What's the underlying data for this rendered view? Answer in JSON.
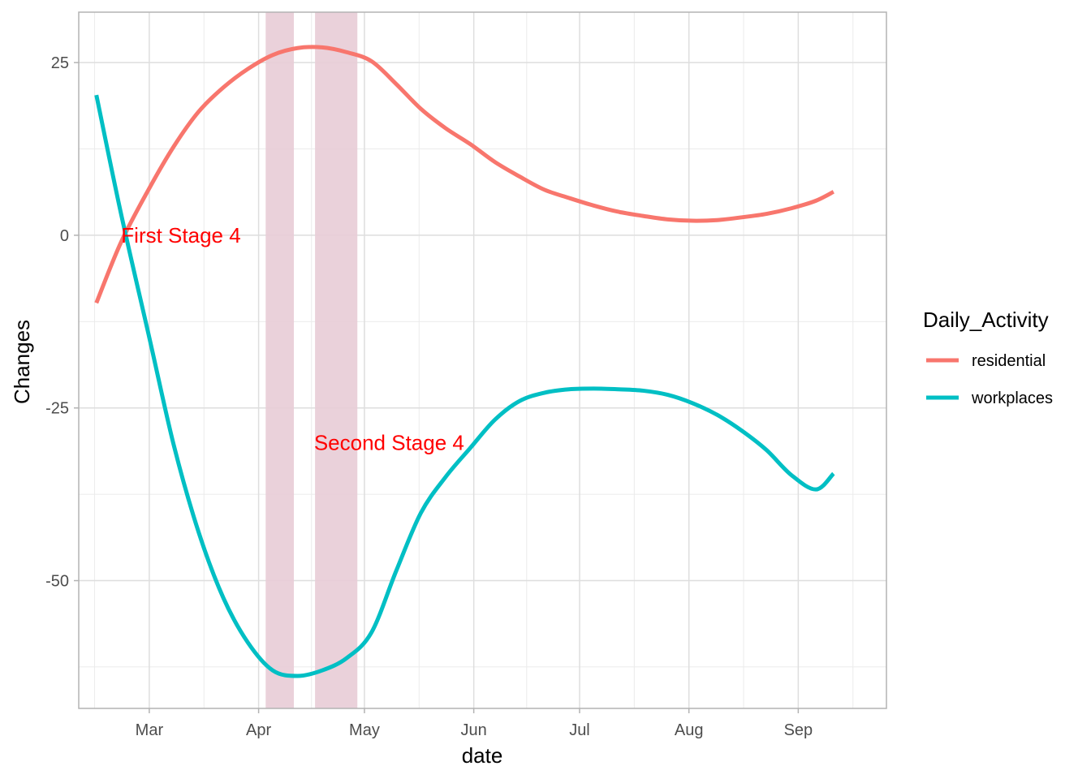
{
  "chart_data": {
    "type": "line",
    "xlabel": "date",
    "ylabel": "Changes",
    "x_ticks": [
      "Mar",
      "Apr",
      "May",
      "Jun",
      "Jul",
      "Aug",
      "Sep"
    ],
    "y_ticks": [
      25,
      0,
      -25,
      -50
    ],
    "xlim": [
      "2020-02-10",
      "2020-09-26"
    ],
    "ylim": [
      -68.5,
      32.3
    ],
    "grid": true,
    "legend": {
      "title": "Daily_Activity",
      "position": "right"
    },
    "shaded_periods": [
      {
        "start": "2020-04-03",
        "end": "2020-04-11",
        "color": "#e8ccd6"
      },
      {
        "start": "2020-04-17",
        "end": "2020-04-29",
        "color": "#e8ccd6"
      }
    ],
    "annotations": [
      {
        "text": "First Stage 4",
        "x": "2020-03-10",
        "y": 0,
        "color": "#ff0000"
      },
      {
        "text": "Second Stage 4",
        "x": "2020-05-08",
        "y": -30,
        "color": "#ff0000"
      }
    ],
    "series": [
      {
        "name": "residential",
        "color": "#f8766d",
        "x": [
          "2020-02-15",
          "2020-02-22",
          "2020-03-01",
          "2020-03-08",
          "2020-03-15",
          "2020-03-22",
          "2020-03-29",
          "2020-04-05",
          "2020-04-12",
          "2020-04-19",
          "2020-04-26",
          "2020-05-03",
          "2020-05-10",
          "2020-05-17",
          "2020-05-24",
          "2020-05-31",
          "2020-06-07",
          "2020-06-14",
          "2020-06-21",
          "2020-06-28",
          "2020-07-05",
          "2020-07-12",
          "2020-07-19",
          "2020-07-26",
          "2020-08-02",
          "2020-08-09",
          "2020-08-16",
          "2020-08-23",
          "2020-08-30",
          "2020-09-06",
          "2020-09-11"
        ],
        "y": [
          -9.8,
          -1.0,
          6.8,
          12.9,
          17.9,
          21.4,
          24.1,
          26.1,
          27.1,
          27.2,
          26.5,
          25.2,
          21.9,
          18.3,
          15.5,
          13.2,
          10.6,
          8.5,
          6.6,
          5.4,
          4.3,
          3.4,
          2.8,
          2.3,
          2.1,
          2.2,
          2.6,
          3.1,
          3.9,
          5.0,
          6.3
        ]
      },
      {
        "name": "workplaces",
        "color": "#00bfc4",
        "x": [
          "2020-02-15",
          "2020-02-22",
          "2020-03-01",
          "2020-03-08",
          "2020-03-15",
          "2020-03-22",
          "2020-03-29",
          "2020-04-05",
          "2020-04-12",
          "2020-04-19",
          "2020-04-26",
          "2020-05-03",
          "2020-05-10",
          "2020-05-17",
          "2020-05-24",
          "2020-05-31",
          "2020-06-07",
          "2020-06-14",
          "2020-06-21",
          "2020-06-28",
          "2020-07-05",
          "2020-07-12",
          "2020-07-19",
          "2020-07-26",
          "2020-08-02",
          "2020-08-09",
          "2020-08-16",
          "2020-08-23",
          "2020-08-30",
          "2020-09-06",
          "2020-09-11"
        ],
        "y": [
          20.3,
          3.1,
          -14.8,
          -30.5,
          -43.0,
          -52.5,
          -59.0,
          -63.0,
          -63.8,
          -63.0,
          -61.2,
          -57.5,
          -48.6,
          -40.2,
          -35.0,
          -30.8,
          -26.7,
          -24.0,
          -22.8,
          -22.3,
          -22.2,
          -22.3,
          -22.5,
          -23.1,
          -24.3,
          -26.0,
          -28.3,
          -31.1,
          -34.7,
          -36.8,
          -34.5
        ]
      }
    ]
  }
}
